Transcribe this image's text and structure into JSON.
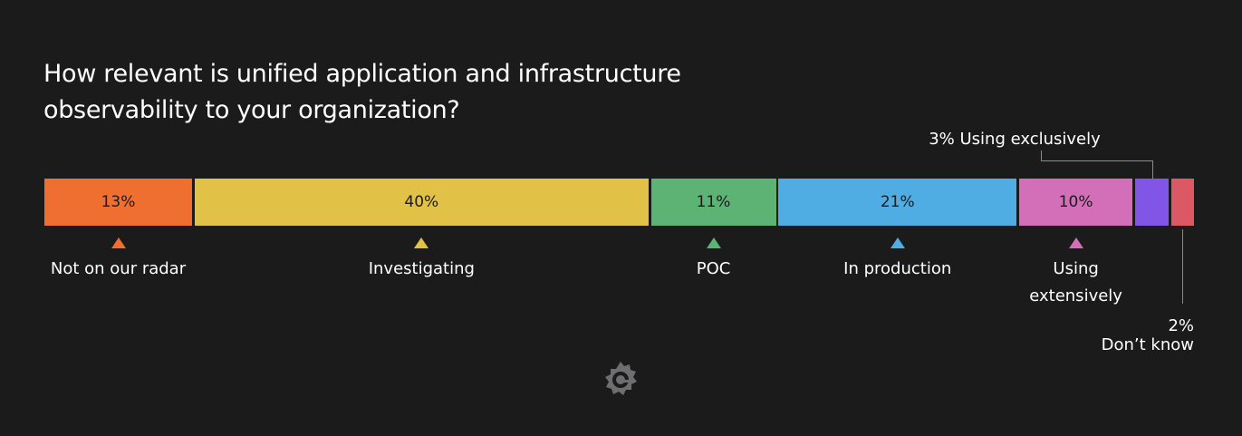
{
  "chart_data": {
    "type": "bar",
    "orientation": "horizontal-stacked",
    "title": "How relevant is unified application and infrastructure observability to your organization?",
    "unit": "%",
    "xlim": [
      0,
      100
    ],
    "grid": false,
    "categories": [
      "Not on our radar",
      "Investigating",
      "POC",
      "In production",
      "Using extensively",
      "Using exclusively",
      "Don’t know"
    ],
    "values": [
      13,
      40,
      11,
      21,
      10,
      3,
      2
    ],
    "data_labels": [
      "13%",
      "40%",
      "11%",
      "21%",
      "10%",
      "3%",
      "2%"
    ],
    "colors": [
      "#ef6f30",
      "#e2c246",
      "#5cb374",
      "#4fade3",
      "#d26fb8",
      "#8155e6",
      "#dc5864"
    ]
  },
  "logo": "grafana-logo-icon"
}
